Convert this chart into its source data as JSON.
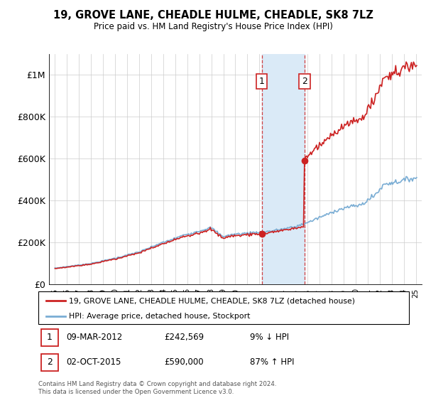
{
  "title": "19, GROVE LANE, CHEADLE HULME, CHEADLE, SK8 7LZ",
  "subtitle": "Price paid vs. HM Land Registry's House Price Index (HPI)",
  "legend_property": "19, GROVE LANE, CHEADLE HULME, CHEADLE, SK8 7LZ (detached house)",
  "legend_hpi": "HPI: Average price, detached house, Stockport",
  "footer": "Contains HM Land Registry data © Crown copyright and database right 2024.\nThis data is licensed under the Open Government Licence v3.0.",
  "transactions": [
    {
      "num": "1",
      "date": "09-MAR-2012",
      "price": "£242,569",
      "pct": "9% ↓ HPI"
    },
    {
      "num": "2",
      "date": "02-OCT-2015",
      "price": "£590,000",
      "pct": "87% ↑ HPI"
    }
  ],
  "t1_year": 2012.19,
  "t2_year": 2015.75,
  "t1_price": 242569,
  "t2_price": 590000,
  "xlim": [
    1994.5,
    2025.5
  ],
  "ylim": [
    0,
    1100000
  ],
  "yticks": [
    0,
    200000,
    400000,
    600000,
    800000,
    1000000
  ],
  "ytick_labels": [
    "£0",
    "£200K",
    "£400K",
    "£600K",
    "£800K",
    "£1M"
  ],
  "xticks": [
    1995,
    1996,
    1997,
    1998,
    1999,
    2000,
    2001,
    2002,
    2003,
    2004,
    2005,
    2006,
    2007,
    2008,
    2009,
    2010,
    2011,
    2012,
    2013,
    2014,
    2015,
    2016,
    2017,
    2018,
    2019,
    2020,
    2021,
    2022,
    2023,
    2024,
    2025
  ],
  "xtick_labels": [
    "95",
    "96",
    "97",
    "98",
    "99",
    "00",
    "01",
    "02",
    "03",
    "04",
    "05",
    "06",
    "07",
    "08",
    "09",
    "10",
    "11",
    "12",
    "13",
    "14",
    "15",
    "16",
    "17",
    "18",
    "19",
    "20",
    "21",
    "22",
    "23",
    "24",
    "25"
  ],
  "hpi_color": "#7aadd4",
  "property_color": "#cc2222",
  "shade_color": "#daeaf7",
  "dashed_color": "#cc2222",
  "grid_color": "#cccccc",
  "bg_color": "#ffffff"
}
